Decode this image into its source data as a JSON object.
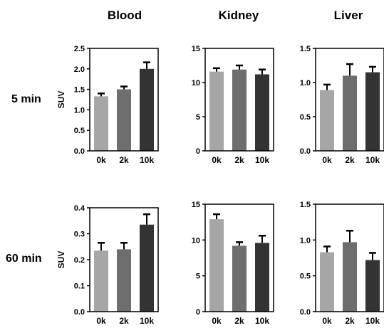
{
  "column_titles": [
    "Blood",
    "Kidney",
    "Liver"
  ],
  "row_labels": [
    "5 min",
    "60 min"
  ],
  "colors": {
    "0k": "#a6a6a6",
    "2k": "#6e6e6e",
    "10k": "#333333",
    "error_bar": "#000000",
    "axis": "#000000"
  },
  "chart_data": [
    {
      "type": "bar",
      "panel": "Blood 5 min",
      "categories": [
        "0k",
        "2k",
        "10k"
      ],
      "values": [
        1.33,
        1.5,
        2.0
      ],
      "errors": [
        0.07,
        0.07,
        0.16
      ],
      "ylabel": "SUV",
      "ylim": [
        0,
        2.5
      ],
      "yticks": [
        "0.0",
        "0.5",
        "1.0",
        "1.5",
        "2.0",
        "2.5"
      ]
    },
    {
      "type": "bar",
      "panel": "Kidney 5 min",
      "categories": [
        "0k",
        "2k",
        "10k"
      ],
      "values": [
        11.6,
        11.9,
        11.2
      ],
      "errors": [
        0.5,
        0.6,
        0.7
      ],
      "ylabel": "",
      "ylim": [
        0,
        15
      ],
      "yticks": [
        "0",
        "5",
        "10",
        "15"
      ]
    },
    {
      "type": "bar",
      "panel": "Liver 5 min",
      "categories": [
        "0k",
        "2k",
        "10k"
      ],
      "values": [
        0.89,
        1.1,
        1.15
      ],
      "errors": [
        0.08,
        0.17,
        0.08
      ],
      "ylabel": "",
      "ylim": [
        0,
        1.5
      ],
      "yticks": [
        "0.0",
        "0.5",
        "1.0",
        "1.5"
      ]
    },
    {
      "type": "bar",
      "panel": "Blood 60 min",
      "categories": [
        "0k",
        "2k",
        "10k"
      ],
      "values": [
        0.235,
        0.24,
        0.335
      ],
      "errors": [
        0.03,
        0.025,
        0.04
      ],
      "ylabel": "SUV",
      "ylim": [
        0,
        0.4
      ],
      "yticks": [
        "0.0",
        "0.1",
        "0.2",
        "0.3",
        "0.4"
      ]
    },
    {
      "type": "bar",
      "panel": "Kidney 60 min",
      "categories": [
        "0k",
        "2k",
        "10k"
      ],
      "values": [
        12.9,
        9.2,
        9.6
      ],
      "errors": [
        0.7,
        0.5,
        1.0
      ],
      "ylabel": "",
      "ylim": [
        0,
        15
      ],
      "yticks": [
        "0",
        "5",
        "10",
        "15"
      ]
    },
    {
      "type": "bar",
      "panel": "Liver 60 min",
      "categories": [
        "0k",
        "2k",
        "10k"
      ],
      "values": [
        0.83,
        0.97,
        0.72
      ],
      "errors": [
        0.08,
        0.16,
        0.1
      ],
      "ylabel": "",
      "ylim": [
        0,
        1.5
      ],
      "yticks": [
        "0.0",
        "0.5",
        "1.0",
        "1.5"
      ]
    }
  ]
}
